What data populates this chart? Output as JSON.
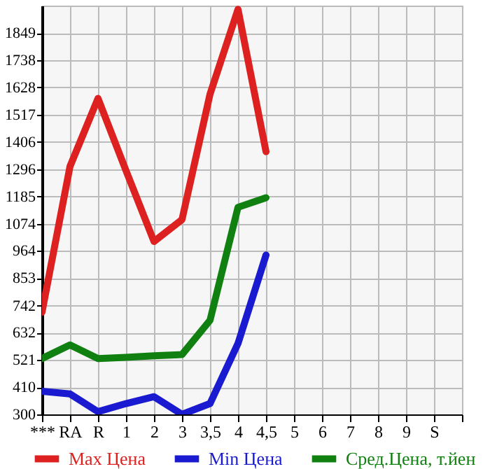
{
  "chart_data": {
    "type": "line",
    "categories": [
      "***",
      "RA",
      "R",
      "1",
      "2",
      "3",
      "3,5",
      "4",
      "4,5",
      "5",
      "6",
      "7",
      "8",
      "9",
      "S",
      null
    ],
    "series": [
      {
        "name": "Max Цена",
        "color": "#dd2020",
        "values": [
          715,
          1307,
          1583,
          1290,
          1002,
          1091,
          1600,
          1945,
          1367,
          null,
          null,
          null,
          null,
          null,
          null,
          null
        ]
      },
      {
        "name": "Min Цена",
        "color": "#1a1ad0",
        "values": [
          394,
          383,
          311,
          344,
          372,
          300,
          344,
          588,
          947,
          null,
          null,
          null,
          null,
          null,
          null,
          null
        ]
      },
      {
        "name": "Сред.Цена, т.йен",
        "color": "#108010",
        "values": [
          527,
          582,
          527,
          532,
          538,
          543,
          682,
          1141,
          1180,
          null,
          null,
          null,
          null,
          null,
          null,
          null
        ]
      }
    ],
    "ylim": [
      300,
      1960
    ],
    "yticks": [
      300,
      410,
      521,
      632,
      742,
      853,
      964,
      1074,
      1185,
      1296,
      1406,
      1517,
      1628,
      1738,
      1849
    ],
    "grid": true,
    "legend": "bottom",
    "marker": "none",
    "line_style": "solid"
  }
}
